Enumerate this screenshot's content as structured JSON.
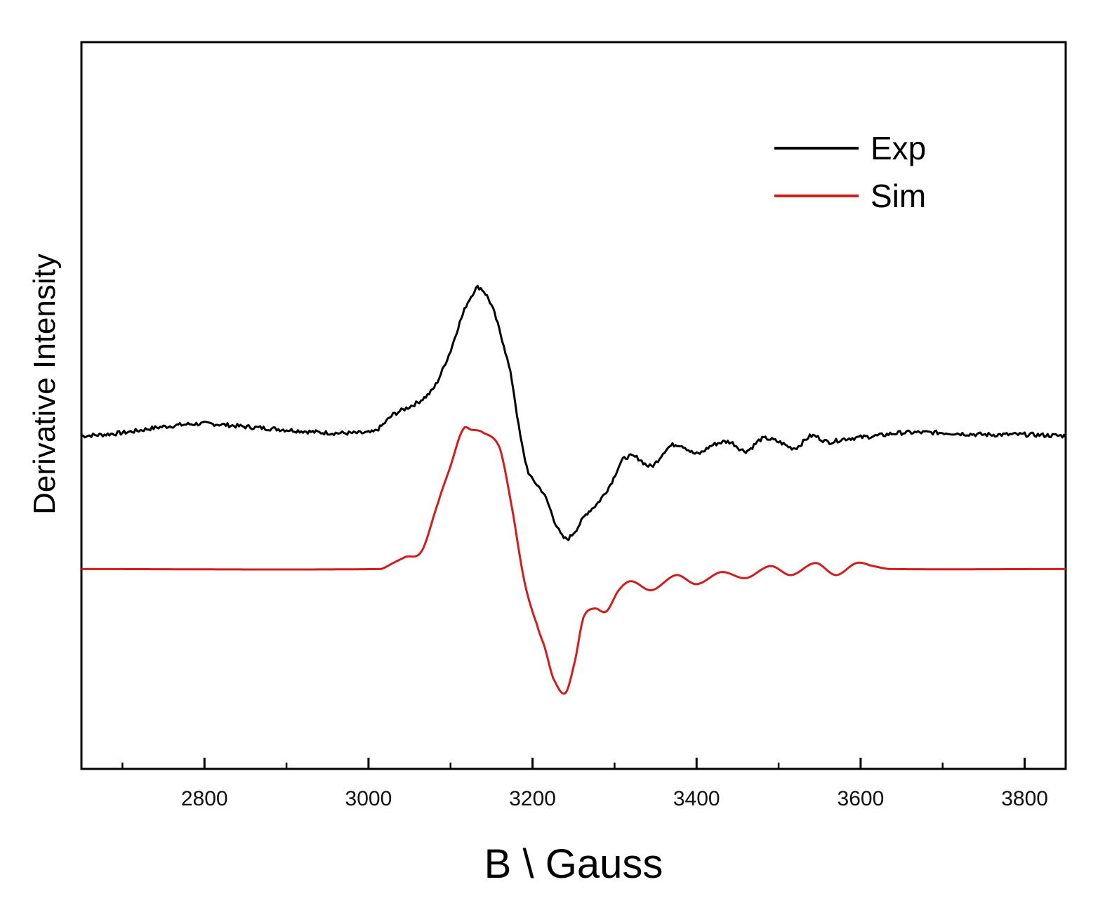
{
  "chart_data": {
    "type": "line",
    "title": "",
    "xlabel": "B \\ Gauss",
    "ylabel": "Derivative Intensity",
    "xlim": [
      2650,
      3850
    ],
    "ylim": [
      -5.5,
      6.5
    ],
    "x_major_ticks": [
      2800,
      3000,
      3200,
      3400,
      3600,
      3800
    ],
    "x_minor_ticks": [
      2700,
      2900,
      3100,
      3300,
      3500,
      3700
    ],
    "y_tick_labels_shown": false,
    "grid": false,
    "legend": {
      "position": "top-right",
      "entries": [
        "Exp",
        "Sim"
      ]
    },
    "series": [
      {
        "name": "Exp",
        "color": "#000000",
        "points": [
          [
            2650,
            0
          ],
          [
            2700,
            0.05
          ],
          [
            2750,
            0.15
          ],
          [
            2800,
            0.2
          ],
          [
            2850,
            0.15
          ],
          [
            2900,
            0.1
          ],
          [
            2950,
            0.05
          ],
          [
            3000,
            0.05
          ],
          [
            3010,
            0.1
          ],
          [
            3030,
            0.35
          ],
          [
            3060,
            0.55
          ],
          [
            3080,
            0.8
          ],
          [
            3100,
            1.4
          ],
          [
            3115,
            2.0
          ],
          [
            3125,
            2.3
          ],
          [
            3135,
            2.45
          ],
          [
            3150,
            2.15
          ],
          [
            3165,
            1.5
          ],
          [
            3175,
            0.9
          ],
          [
            3185,
            0.0
          ],
          [
            3195,
            -0.6
          ],
          [
            3205,
            -0.8
          ],
          [
            3215,
            -1.0
          ],
          [
            3230,
            -1.5
          ],
          [
            3240,
            -1.7
          ],
          [
            3250,
            -1.6
          ],
          [
            3265,
            -1.3
          ],
          [
            3280,
            -1.1
          ],
          [
            3295,
            -0.8
          ],
          [
            3310,
            -0.4
          ],
          [
            3325,
            -0.35
          ],
          [
            3345,
            -0.5
          ],
          [
            3365,
            -0.2
          ],
          [
            3380,
            -0.15
          ],
          [
            3400,
            -0.3
          ],
          [
            3420,
            -0.15
          ],
          [
            3440,
            -0.1
          ],
          [
            3460,
            -0.25
          ],
          [
            3480,
            -0.05
          ],
          [
            3500,
            -0.1
          ],
          [
            3520,
            -0.2
          ],
          [
            3540,
            0.0
          ],
          [
            3560,
            -0.1
          ],
          [
            3580,
            -0.05
          ],
          [
            3620,
            0.0
          ],
          [
            3650,
            0.05
          ],
          [
            3700,
            0.05
          ],
          [
            3750,
            0.02
          ],
          [
            3800,
            0.02
          ],
          [
            3850,
            0.0
          ]
        ]
      },
      {
        "name": "Sim",
        "color": "#d41c1c",
        "points": [
          [
            2650,
            -2.2
          ],
          [
            3015,
            -2.2
          ],
          [
            3030,
            -2.1
          ],
          [
            3045,
            -2.0
          ],
          [
            3065,
            -1.9
          ],
          [
            3085,
            -1.1
          ],
          [
            3100,
            -0.5
          ],
          [
            3115,
            0.1
          ],
          [
            3125,
            0.1
          ],
          [
            3140,
            0.05
          ],
          [
            3160,
            -0.2
          ],
          [
            3175,
            -1.2
          ],
          [
            3190,
            -2.4
          ],
          [
            3205,
            -3.1
          ],
          [
            3215,
            -3.5
          ],
          [
            3225,
            -4.0
          ],
          [
            3240,
            -4.25
          ],
          [
            3252,
            -3.7
          ],
          [
            3262,
            -3.0
          ],
          [
            3275,
            -2.85
          ],
          [
            3290,
            -2.9
          ],
          [
            3305,
            -2.55
          ],
          [
            3320,
            -2.4
          ],
          [
            3345,
            -2.55
          ],
          [
            3375,
            -2.3
          ],
          [
            3400,
            -2.45
          ],
          [
            3430,
            -2.25
          ],
          [
            3460,
            -2.35
          ],
          [
            3490,
            -2.15
          ],
          [
            3515,
            -2.3
          ],
          [
            3545,
            -2.1
          ],
          [
            3570,
            -2.3
          ],
          [
            3595,
            -2.1
          ],
          [
            3615,
            -2.15
          ],
          [
            3635,
            -2.2
          ],
          [
            3850,
            -2.2
          ]
        ]
      }
    ]
  }
}
